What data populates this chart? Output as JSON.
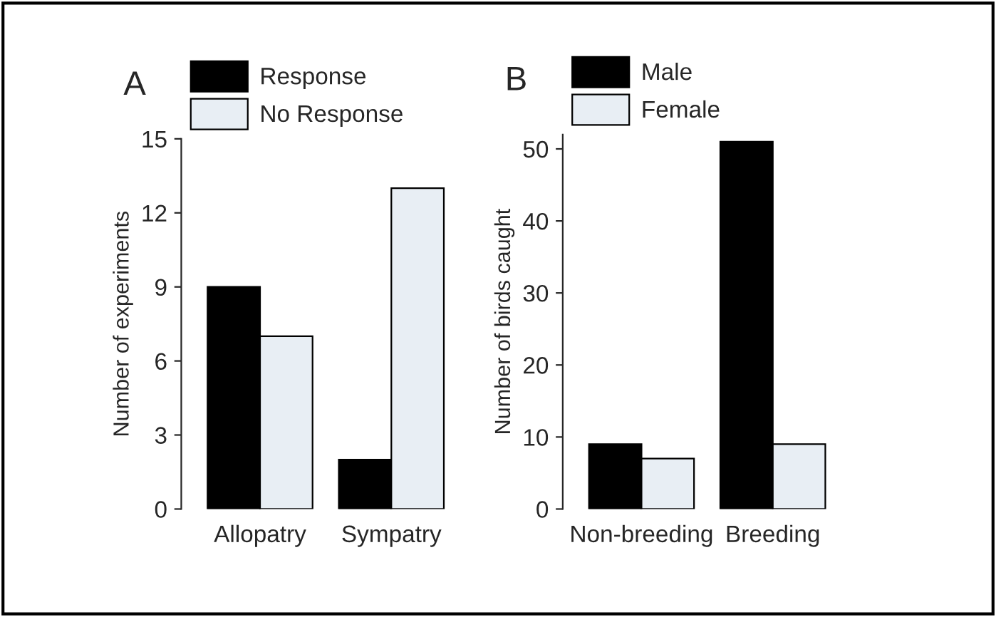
{
  "chart_data": [
    {
      "type": "bar",
      "title": "A",
      "ylabel": "Number of experiments",
      "categories": [
        "Allopatry",
        "Sympatry"
      ],
      "series": [
        {
          "name": "Response",
          "color": "#000000",
          "values": [
            9,
            2
          ]
        },
        {
          "name": "No Response",
          "color": "#e8eef4",
          "values": [
            7,
            13
          ]
        }
      ],
      "ylim": [
        0,
        15
      ],
      "yticks": [
        0,
        3,
        6,
        9,
        12,
        15
      ],
      "legend": "top",
      "grid": false
    },
    {
      "type": "bar",
      "title": "B",
      "ylabel": "Number of birds caught",
      "categories": [
        "Non-breeding",
        "Breeding"
      ],
      "series": [
        {
          "name": "Male",
          "color": "#000000",
          "values": [
            9,
            51
          ]
        },
        {
          "name": "Female",
          "color": "#e8eef4",
          "values": [
            7,
            9
          ]
        }
      ],
      "ylim": [
        0,
        52
      ],
      "yticks": [
        0,
        10,
        20,
        30,
        40,
        50
      ],
      "legend": "top",
      "grid": false
    }
  ]
}
